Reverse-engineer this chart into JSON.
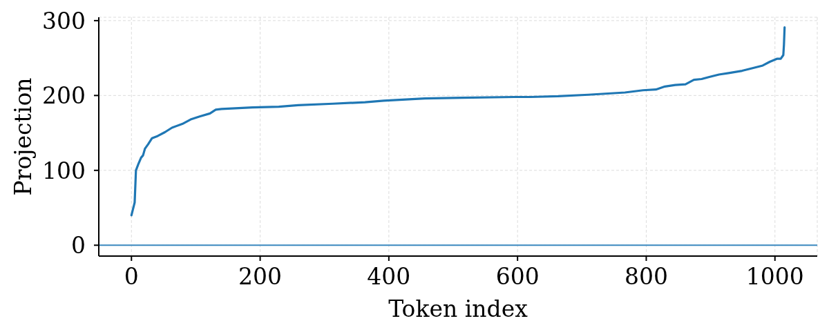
{
  "chart_data": {
    "type": "line",
    "xlabel": "Token index",
    "ylabel": "Projection",
    "x": [
      0,
      5,
      7,
      11,
      15,
      18,
      21,
      26,
      32,
      41,
      52,
      63,
      79,
      92,
      106,
      122,
      131,
      140,
      188,
      229,
      259,
      313,
      363,
      392,
      456,
      513,
      595,
      620,
      663,
      710,
      767,
      795,
      815,
      829,
      845,
      861,
      874,
      886,
      899,
      913,
      928,
      949,
      963,
      981,
      992,
      1003,
      1009,
      1013,
      1014,
      1015
    ],
    "series": [
      {
        "color": "#1f77b4",
        "values": [
          40,
          57,
          100,
          109,
          117,
          120,
          129,
          135,
          143,
          146,
          151,
          157,
          162,
          168,
          172,
          176,
          181,
          182,
          184,
          185,
          187,
          189,
          191,
          193,
          196,
          197,
          198,
          198,
          199,
          201,
          204,
          207,
          208,
          212,
          214,
          215,
          221,
          222,
          225,
          228,
          230,
          233,
          236,
          240,
          245,
          249,
          249,
          254,
          268,
          291
        ]
      }
    ],
    "xlim": [
      -50.75,
      1065.75
    ],
    "ylim": [
      -14.5,
      304.5
    ],
    "xticks": [
      0,
      200,
      400,
      600,
      800,
      1000
    ],
    "yticks": [
      0,
      100,
      200,
      300
    ],
    "grid": true,
    "ref_lines": [
      {
        "axis": "y",
        "value": 0,
        "color": "#3a88bf"
      }
    ]
  }
}
